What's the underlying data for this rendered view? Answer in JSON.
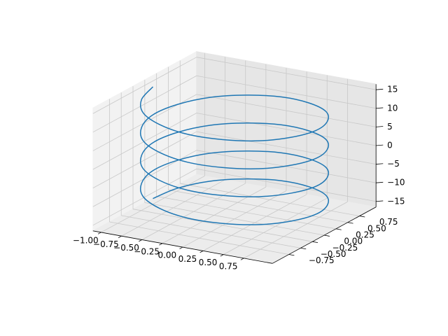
{
  "chart_data": {
    "type": "line3d",
    "series": [
      {
        "color": "#1f77b4",
        "x": [
          -1,
          -0.92,
          -0.71,
          -0.38,
          0,
          0.38,
          0.71,
          0.92,
          1,
          0.92,
          0.71,
          0.38,
          0,
          -0.38,
          -0.71,
          -0.92,
          -1,
          -0.92,
          -0.71,
          -0.38,
          0,
          0.38,
          0.71,
          0.92,
          1,
          0.92,
          0.71,
          0.38,
          0,
          -0.38,
          -0.71,
          -0.92,
          -1,
          -0.92,
          -0.71,
          -0.38,
          0,
          0.38,
          0.71,
          0.92,
          1,
          0.92,
          0.71,
          0.38,
          0,
          -0.38,
          -0.71,
          -0.92,
          -1,
          -0.92,
          -0.71,
          -0.38,
          0,
          0.38,
          0.71,
          0.92,
          1,
          0.92,
          0.71,
          0.38,
          0,
          -0.38,
          -0.71,
          -0.92,
          -1
        ],
        "y": [
          0,
          0.38,
          0.71,
          0.92,
          1,
          0.92,
          0.71,
          0.38,
          0,
          -0.38,
          -0.71,
          -0.92,
          -1,
          -0.92,
          -0.71,
          -0.38,
          0,
          0.38,
          0.71,
          0.92,
          1,
          0.92,
          0.71,
          0.38,
          0,
          -0.38,
          -0.71,
          -0.92,
          -1,
          -0.92,
          -0.71,
          -0.38,
          0,
          0.38,
          0.71,
          0.92,
          1,
          0.92,
          0.71,
          0.38,
          0,
          -0.38,
          -0.71,
          -0.92,
          -1,
          -0.92,
          -0.71,
          -0.38,
          0,
          0.38,
          0.71,
          0.92,
          1,
          0.92,
          0.71,
          0.38,
          0,
          -0.38,
          -0.71,
          -0.92,
          -1,
          -0.92,
          -0.71,
          -0.38,
          0
        ],
        "z": [
          -15,
          -14.53125,
          -14.0625,
          -13.59375,
          -13.125,
          -12.65625,
          -12.1875,
          -11.71875,
          -11.25,
          -10.78125,
          -10.3125,
          -9.84375,
          -9.375,
          -8.90625,
          -8.4375,
          -7.96875,
          -7.5,
          -7.03125,
          -6.5625,
          -6.09375,
          -5.625,
          -5.15625,
          -4.6875,
          -4.21875,
          -3.75,
          -3.28125,
          -2.8125,
          -2.34375,
          -1.875,
          -1.40625,
          -0.9375,
          -0.46875,
          0,
          0.46875,
          0.9375,
          1.40625,
          1.875,
          2.34375,
          2.8125,
          3.28125,
          3.75,
          4.21875,
          4.6875,
          5.15625,
          5.625,
          6.09375,
          6.5625,
          7.03125,
          7.5,
          7.96875,
          8.4375,
          8.90625,
          9.375,
          9.84375,
          10.3125,
          10.78125,
          11.25,
          11.71875,
          12.1875,
          12.65625,
          13.125,
          13.59375,
          14.0625,
          14.53125,
          15
        ]
      }
    ],
    "xlim": [
      -1.1,
      1.1
    ],
    "ylim": [
      -1.1,
      1.1
    ],
    "zlim": [
      -16.5,
      16.5
    ],
    "xticks": [
      {
        "value": -1,
        "label": "−1.00"
      },
      {
        "value": -0.75,
        "label": "−0.75"
      },
      {
        "value": -0.5,
        "label": "−0.50"
      },
      {
        "value": -0.25,
        "label": "−0.25"
      },
      {
        "value": 0,
        "label": "0.00"
      },
      0.25,
      {
        "value": 0.5,
        "label": "0.50"
      },
      0.75
    ],
    "yticks": [
      {
        "value": -0.75,
        "label": "−0.75"
      },
      {
        "value": -0.5,
        "label": "−0.50"
      },
      {
        "value": -0.25,
        "label": "−0.25"
      },
      {
        "value": 0,
        "label": "0.00"
      },
      0.25,
      {
        "value": 0.5,
        "label": "0.50"
      },
      0.75
    ],
    "zticks": [
      {
        "value": -15,
        "label": "−15"
      },
      {
        "value": -10,
        "label": "−10"
      },
      {
        "value": -5,
        "label": "−5"
      },
      0,
      5,
      10,
      15
    ],
    "grid": true
  }
}
